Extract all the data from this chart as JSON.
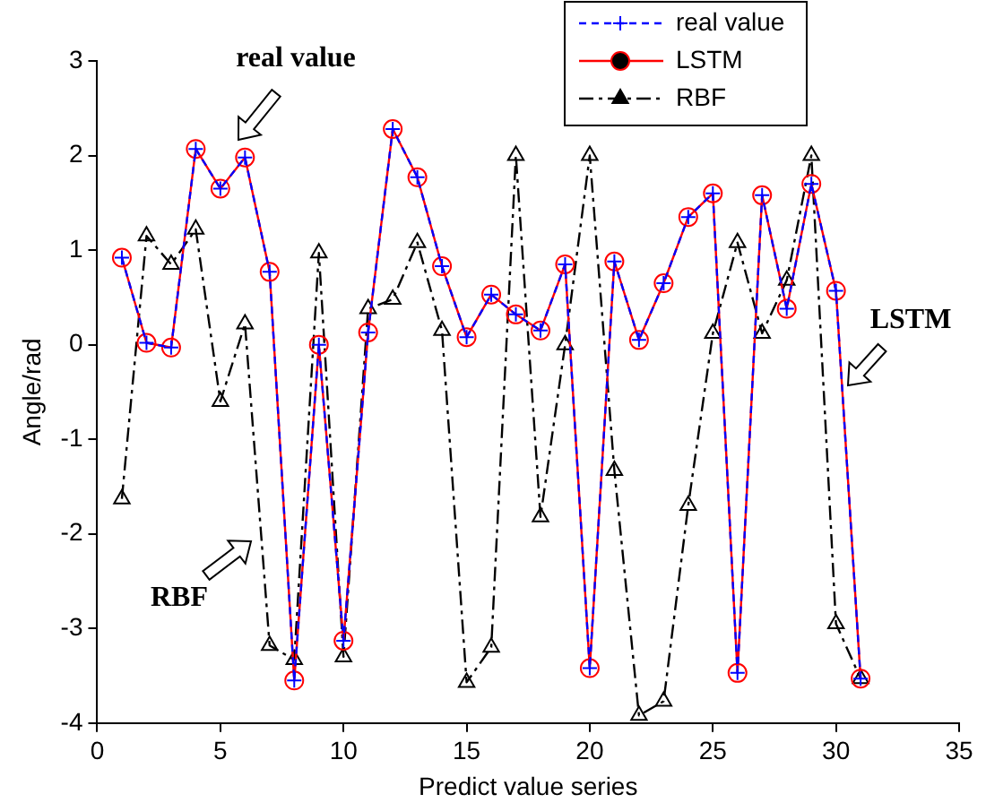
{
  "chart_data": {
    "type": "line",
    "xlabel": "Predict value series",
    "ylabel": "Angle/rad",
    "x": [
      1,
      2,
      3,
      4,
      5,
      6,
      7,
      8,
      9,
      10,
      11,
      12,
      13,
      14,
      15,
      16,
      17,
      18,
      19,
      20,
      21,
      22,
      23,
      24,
      25,
      26,
      27,
      28,
      29,
      30,
      31
    ],
    "series": [
      {
        "name": "real value",
        "color": "#0000ff",
        "marker": "cross",
        "line_style": "dashed",
        "values": [
          0.92,
          0.02,
          -0.03,
          2.07,
          1.65,
          1.98,
          0.77,
          -3.55,
          0.0,
          -3.13,
          0.13,
          2.28,
          1.77,
          0.83,
          0.08,
          0.53,
          0.32,
          0.15,
          0.85,
          -3.42,
          0.88,
          0.05,
          0.65,
          1.35,
          1.6,
          -3.47,
          1.58,
          0.38,
          1.7,
          0.57,
          -3.53
        ]
      },
      {
        "name": "LSTM",
        "color": "#ff0000",
        "marker": "circle",
        "line_style": "solid",
        "values": [
          0.92,
          0.02,
          -0.03,
          2.07,
          1.65,
          1.98,
          0.77,
          -3.55,
          0.0,
          -3.13,
          0.13,
          2.28,
          1.77,
          0.83,
          0.08,
          0.53,
          0.32,
          0.15,
          0.85,
          -3.42,
          0.88,
          0.05,
          0.65,
          1.35,
          1.6,
          -3.47,
          1.58,
          0.38,
          1.7,
          0.57,
          -3.53
        ]
      },
      {
        "name": "RBF",
        "color": "#000000",
        "marker": "triangle",
        "line_style": "dashdot",
        "values": [
          -1.63,
          1.15,
          0.85,
          1.22,
          -0.6,
          0.22,
          -3.18,
          -3.33,
          0.97,
          -3.3,
          0.38,
          0.48,
          1.08,
          0.15,
          -3.57,
          -3.2,
          2.0,
          -1.82,
          0.0,
          2.0,
          -1.33,
          -3.92,
          -3.77,
          -1.7,
          0.12,
          1.08,
          0.12,
          0.68,
          2.0,
          -2.95,
          -3.53
        ]
      }
    ],
    "xlim": [
      0,
      35
    ],
    "xticks": [
      0,
      5,
      10,
      15,
      20,
      25,
      30,
      35
    ],
    "ylim": [
      -4,
      3
    ],
    "yticks": [
      -4,
      -3,
      -2,
      -1,
      0,
      1,
      2,
      3
    ],
    "grid": false,
    "legend": "top right",
    "annotations": [
      "real value",
      "LSTM",
      "RBF"
    ]
  }
}
